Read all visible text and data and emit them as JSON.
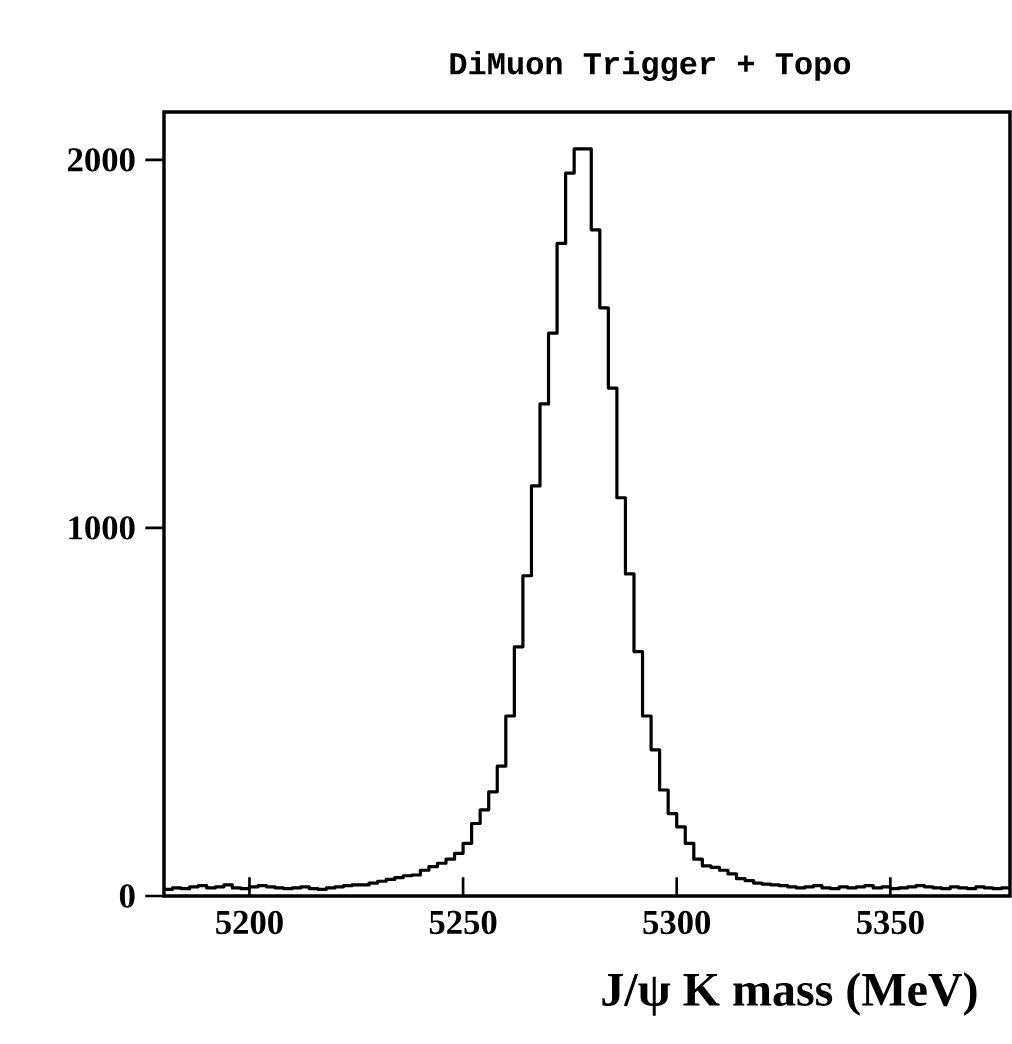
{
  "chart_data": {
    "type": "histogram",
    "title": "DiMuon Trigger + Topo",
    "xlabel": "J/ψ K mass (MeV)",
    "bins": [
      5180,
      5182,
      5184,
      5186,
      5188,
      5190,
      5192,
      5194,
      5196,
      5198,
      5200,
      5202,
      5204,
      5206,
      5208,
      5210,
      5212,
      5214,
      5216,
      5218,
      5220,
      5222,
      5224,
      5226,
      5228,
      5230,
      5232,
      5234,
      5236,
      5238,
      5240,
      5242,
      5244,
      5246,
      5248,
      5250,
      5252,
      5254,
      5256,
      5258,
      5260,
      5262,
      5264,
      5266,
      5268,
      5270,
      5272,
      5274,
      5276,
      5278,
      5280,
      5282,
      5284,
      5286,
      5288,
      5290,
      5292,
      5294,
      5296,
      5298,
      5300,
      5302,
      5304,
      5306,
      5308,
      5310,
      5312,
      5314,
      5316,
      5318,
      5320,
      5322,
      5324,
      5326,
      5328,
      5330,
      5332,
      5334,
      5336,
      5338,
      5340,
      5342,
      5344,
      5346,
      5348,
      5350,
      5352,
      5354,
      5356,
      5358,
      5360,
      5362,
      5364,
      5366,
      5368,
      5370,
      5372,
      5374,
      5376,
      5378
    ],
    "values": [
      18,
      22,
      20,
      25,
      28,
      22,
      25,
      30,
      22,
      20,
      25,
      28,
      25,
      22,
      20,
      22,
      25,
      20,
      18,
      22,
      25,
      28,
      30,
      30,
      35,
      40,
      45,
      50,
      55,
      57,
      70,
      80,
      89,
      100,
      116,
      143,
      197,
      234,
      283,
      353,
      489,
      677,
      870,
      1114,
      1337,
      1529,
      1773,
      1964,
      2030,
      2030,
      1810,
      1598,
      1380,
      1082,
      875,
      664,
      489,
      397,
      288,
      224,
      188,
      143,
      100,
      82,
      78,
      70,
      60,
      47,
      42,
      35,
      32,
      30,
      28,
      25,
      22,
      25,
      28,
      22,
      20,
      25,
      22,
      25,
      28,
      22,
      25,
      20,
      22,
      25,
      28,
      25,
      22,
      20,
      25,
      22,
      20,
      25,
      22,
      20,
      22
    ],
    "color": "#000000",
    "xlim": [
      5180,
      5378
    ],
    "ylim": [
      0,
      2130
    ],
    "xticks": [
      5200,
      5250,
      5300,
      5350
    ],
    "yticks": [
      0,
      1000,
      2000
    ],
    "grid": false
  }
}
